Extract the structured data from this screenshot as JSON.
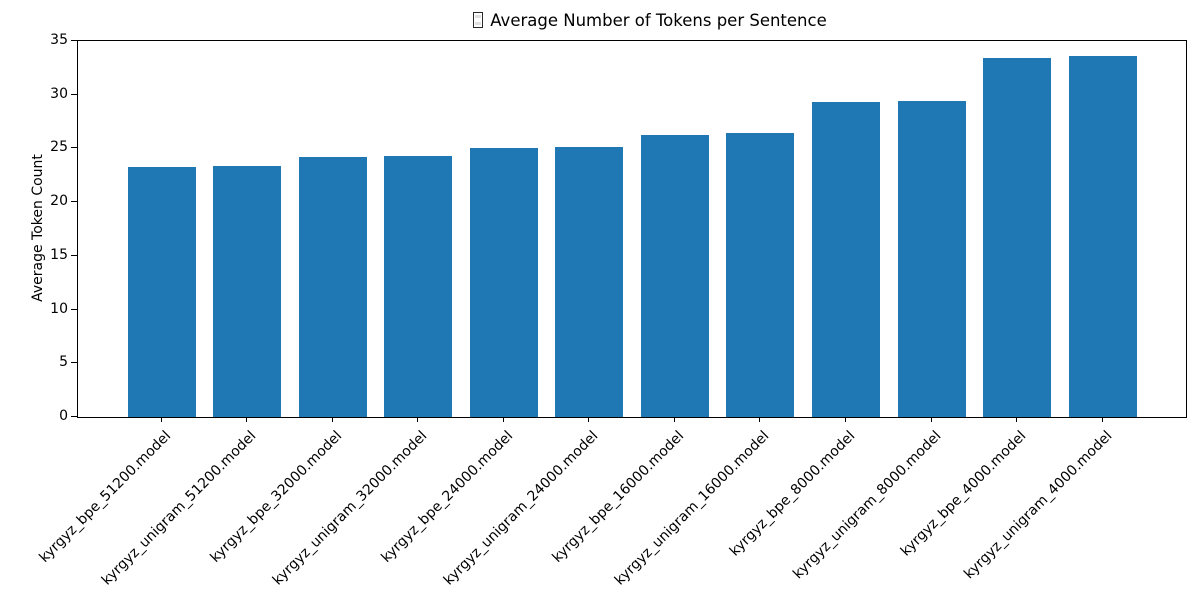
{
  "chart_data": {
    "type": "bar",
    "title": "Average Number of Tokens per Sentence",
    "title_prefix_icon": "missing-glyph-box",
    "xlabel": "",
    "ylabel": "Average Token Count",
    "categories": [
      "kyrgyz_bpe_51200.model",
      "kyrgyz_unigram_51200.model",
      "kyrgyz_bpe_32000.model",
      "kyrgyz_unigram_32000.model",
      "kyrgyz_bpe_24000.model",
      "kyrgyz_unigram_24000.model",
      "kyrgyz_bpe_16000.model",
      "kyrgyz_unigram_16000.model",
      "kyrgyz_bpe_8000.model",
      "kyrgyz_unigram_8000.model",
      "kyrgyz_bpe_4000.model",
      "kyrgyz_unigram_4000.model"
    ],
    "values": [
      23.3,
      23.4,
      24.2,
      24.3,
      25.0,
      25.1,
      26.3,
      26.4,
      29.3,
      29.4,
      33.4,
      33.6
    ],
    "ylim": [
      0,
      35
    ],
    "yticks": [
      0,
      5,
      10,
      15,
      20,
      25,
      30,
      35
    ],
    "xtick_rotation_deg": 45,
    "bar_color": "#1f77b4",
    "grid": false,
    "legend": "none",
    "background_color": "#ffffff"
  }
}
